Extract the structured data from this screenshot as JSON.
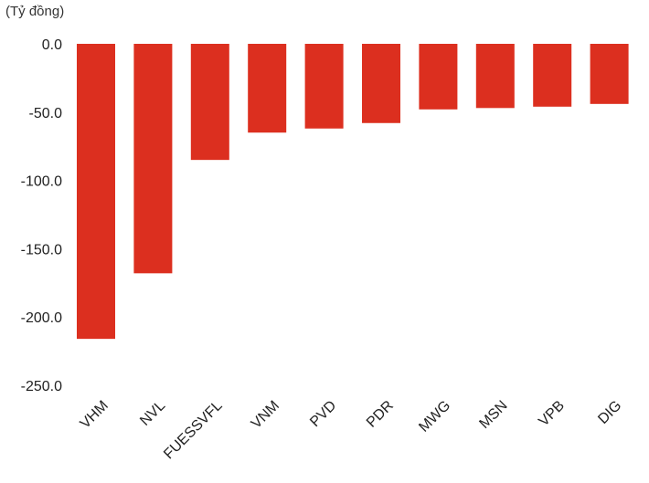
{
  "chart_data": {
    "type": "bar",
    "unit_label": "(Tỷ đồng)",
    "categories": [
      "VHM",
      "NVL",
      "FUESSVFL",
      "VNM",
      "PVD",
      "PDR",
      "MWG",
      "MSN",
      "VPB",
      "DIG"
    ],
    "values": [
      -216,
      -168,
      -85,
      -65,
      -62,
      -58,
      -48,
      -47,
      -46,
      -44
    ],
    "ylim": [
      -250,
      0
    ],
    "yticks": [
      0,
      -50,
      -100,
      -150,
      -200,
      -250
    ],
    "ytick_labels": [
      "0.0",
      "-50.0",
      "-100.0",
      "-150.0",
      "-200.0",
      "-250.0"
    ],
    "bar_color": "#dc2f1f",
    "grid": false,
    "legend": "none"
  }
}
